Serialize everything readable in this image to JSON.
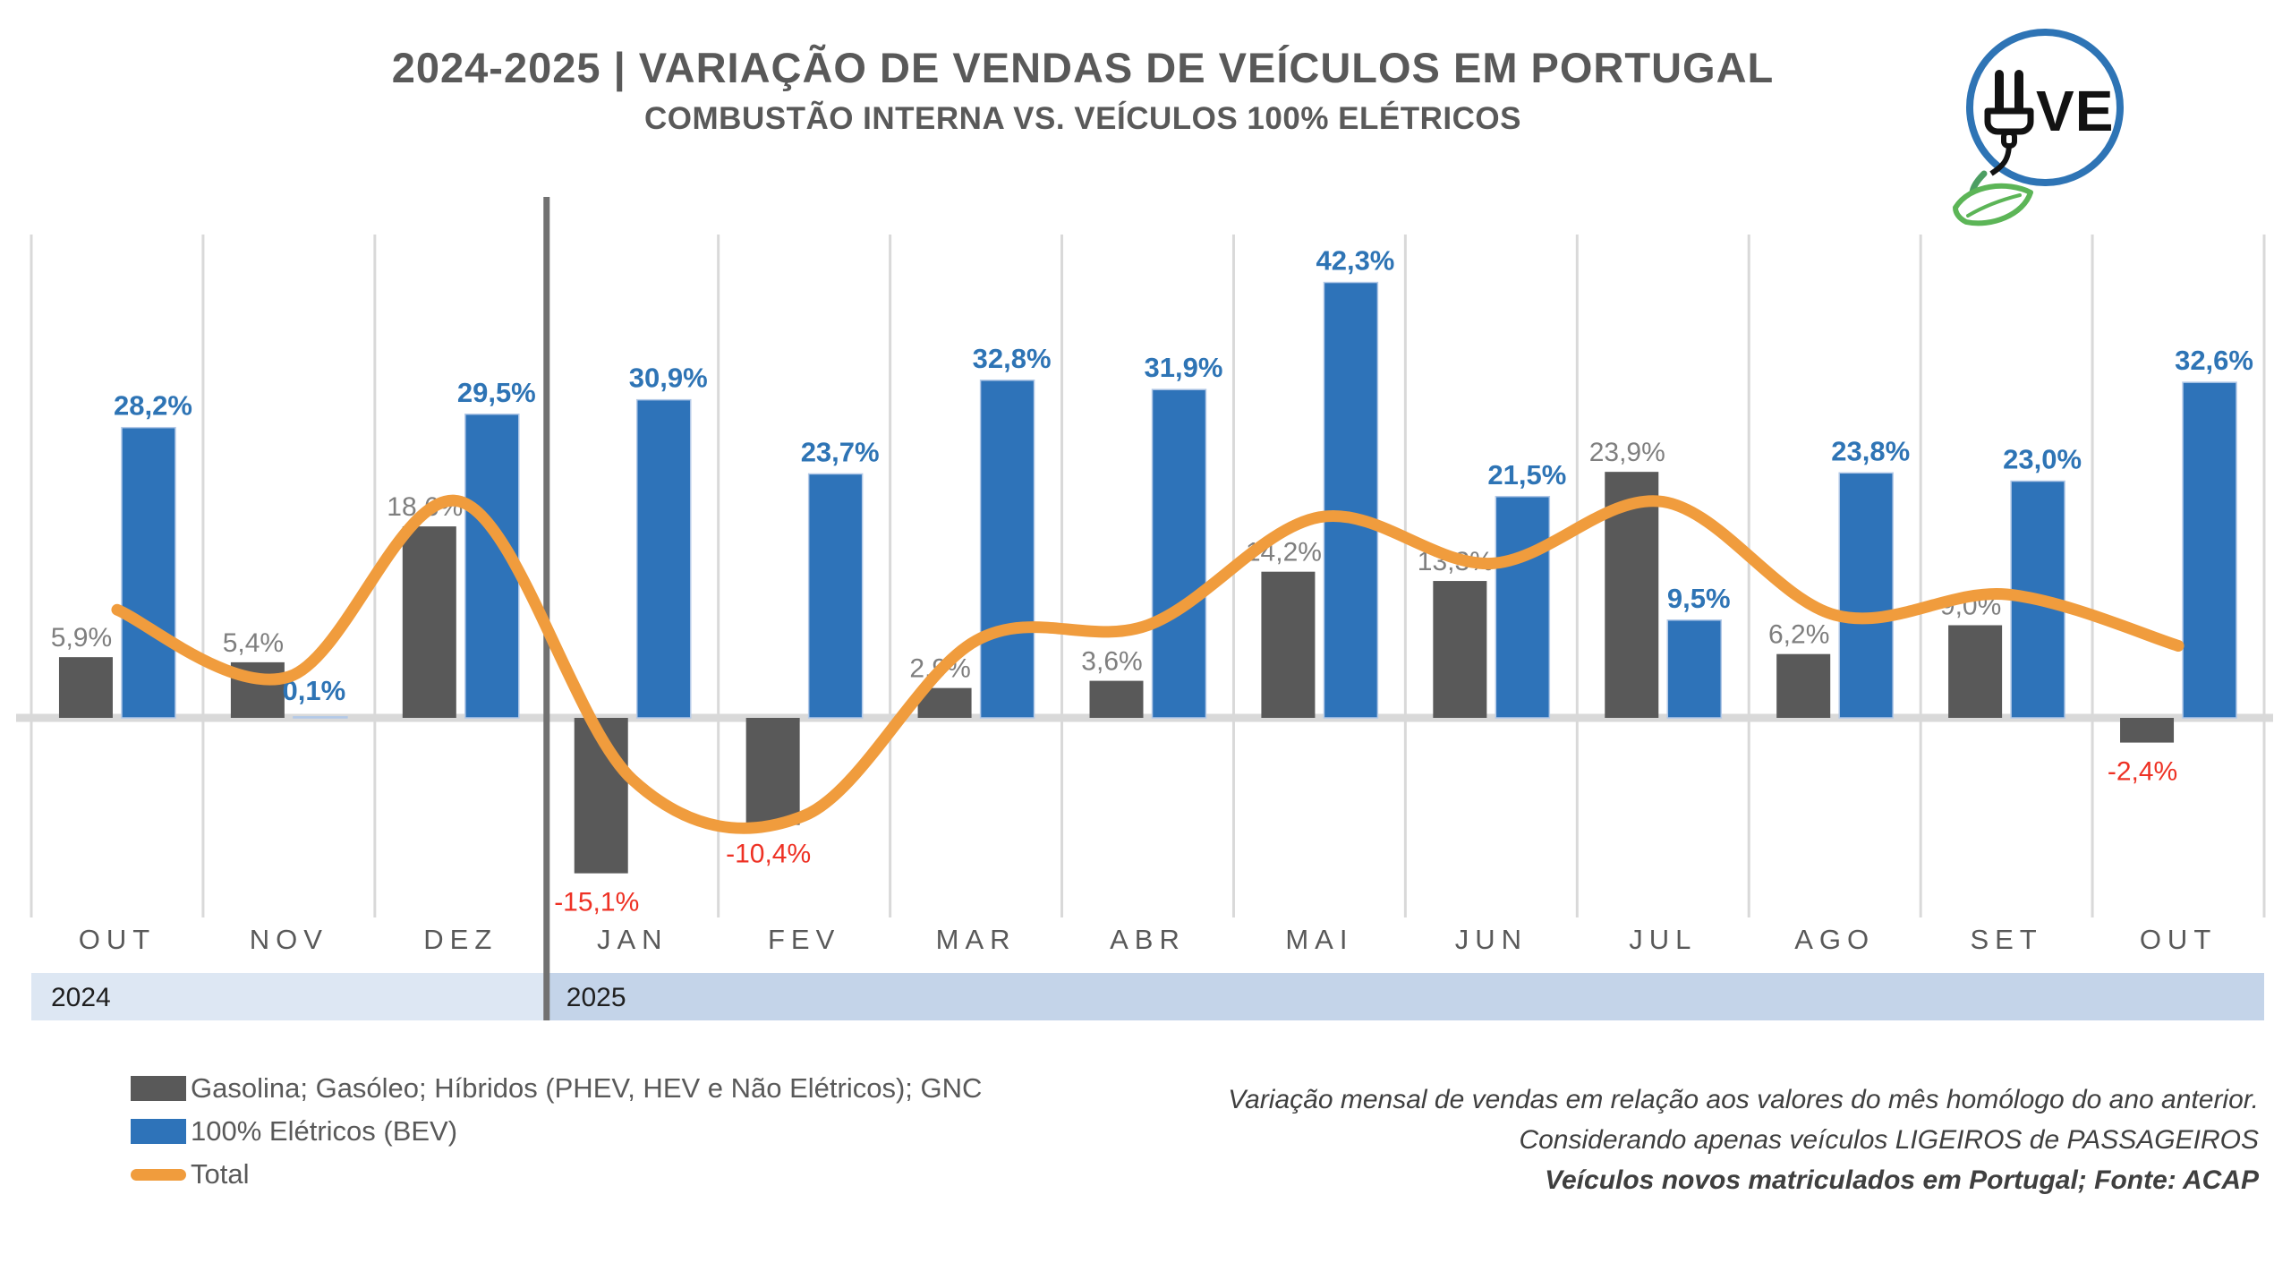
{
  "header": {
    "title": "2024-2025 | VARIAÇÃO DE VENDAS DE VEÍCULOS EM PORTUGAL",
    "subtitle": "COMBUSTÃO INTERNA VS. VEÍCULOS 100% ELÉTRICOS"
  },
  "logo": {
    "alt": "UVE",
    "letters": "VE",
    "circle_color": "#2E74B5",
    "leaf_color": "#5CB557",
    "plug_color": "#121212"
  },
  "chart_data": {
    "type": "bar",
    "categories": [
      "OUT",
      "NOV",
      "DEZ",
      "JAN",
      "FEV",
      "MAR",
      "ABR",
      "MAI",
      "JUN",
      "JUL",
      "AGO",
      "SET",
      "OUT"
    ],
    "category_years": [
      "2024",
      "2024",
      "2024",
      "2025",
      "2025",
      "2025",
      "2025",
      "2025",
      "2025",
      "2025",
      "2025",
      "2025",
      "2025"
    ],
    "series": [
      {
        "name": "Gasolina; Gasóleo; Híbridos (PHEV, HEV e Não Elétricos); GNC",
        "type": "bar",
        "color": "#595959",
        "values": [
          5.9,
          5.4,
          18.6,
          -15.1,
          -10.4,
          2.9,
          3.6,
          14.2,
          13.3,
          23.9,
          6.2,
          9.0,
          -2.4
        ],
        "labels": [
          "5,9%",
          "5,4%",
          "18,6%",
          "-15,1%",
          "-10,4%",
          "2,9%",
          "3,6%",
          "14,2%",
          "13,3%",
          "23,9%",
          "6,2%",
          "9,0%",
          "-2,4%"
        ]
      },
      {
        "name": "100% Elétricos (BEV)",
        "type": "bar",
        "color": "#2E73B9",
        "values": [
          28.2,
          0.1,
          29.5,
          30.9,
          23.7,
          32.8,
          31.9,
          42.3,
          21.5,
          9.5,
          23.8,
          23.0,
          32.6
        ],
        "labels": [
          "28,2%",
          "0,1%",
          "29,5%",
          "30,9%",
          "23,7%",
          "32,8%",
          "31,9%",
          "42,3%",
          "21,5%",
          "9,5%",
          "23,8%",
          "23,0%",
          "32,6%"
        ]
      },
      {
        "name": "Total",
        "type": "line",
        "color": "#F09C3D",
        "values_estimated": [
          10.5,
          4,
          21,
          -6,
          -9.5,
          7.5,
          9,
          19.5,
          15,
          21,
          10,
          12,
          7
        ]
      }
    ],
    "label_colors": {
      "ice_positive": "#7F7F7F",
      "ice_negative": "#EE3124",
      "bev": "#2E74B5"
    },
    "axis": {
      "zero_line_color": "#D9D9D9",
      "gridline_color": "#D9D9D9",
      "divider_color": "#717171",
      "month_label_color": "#595959"
    },
    "year_bands": [
      {
        "label": "2024",
        "color": "#DDE7F3",
        "from": 0,
        "to": 3
      },
      {
        "label": "2025",
        "color": "#C4D4E9",
        "from": 3,
        "to": 13
      }
    ],
    "ylim": [
      -20,
      48
    ],
    "grid": "vertical-month-boundaries",
    "legend_position": "bottom-left"
  },
  "legend": {
    "items": [
      {
        "label": "Gasolina; Gasóleo; Híbridos (PHEV, HEV e Não Elétricos); GNC",
        "color": "#595959",
        "kind": "bar"
      },
      {
        "label": "100% Elétricos (BEV)",
        "color": "#2E73B9",
        "kind": "bar"
      },
      {
        "label": "Total",
        "color": "#F09C3D",
        "kind": "line"
      }
    ]
  },
  "notes": {
    "lines": [
      "Variação mensal de vendas em relação aos valores do mês homólogo do ano anterior.",
      "Considerando apenas veículos LIGEIROS de PASSAGEIROS",
      "Veículos novos matriculados em Portugal; Fonte: ACAP"
    ]
  }
}
